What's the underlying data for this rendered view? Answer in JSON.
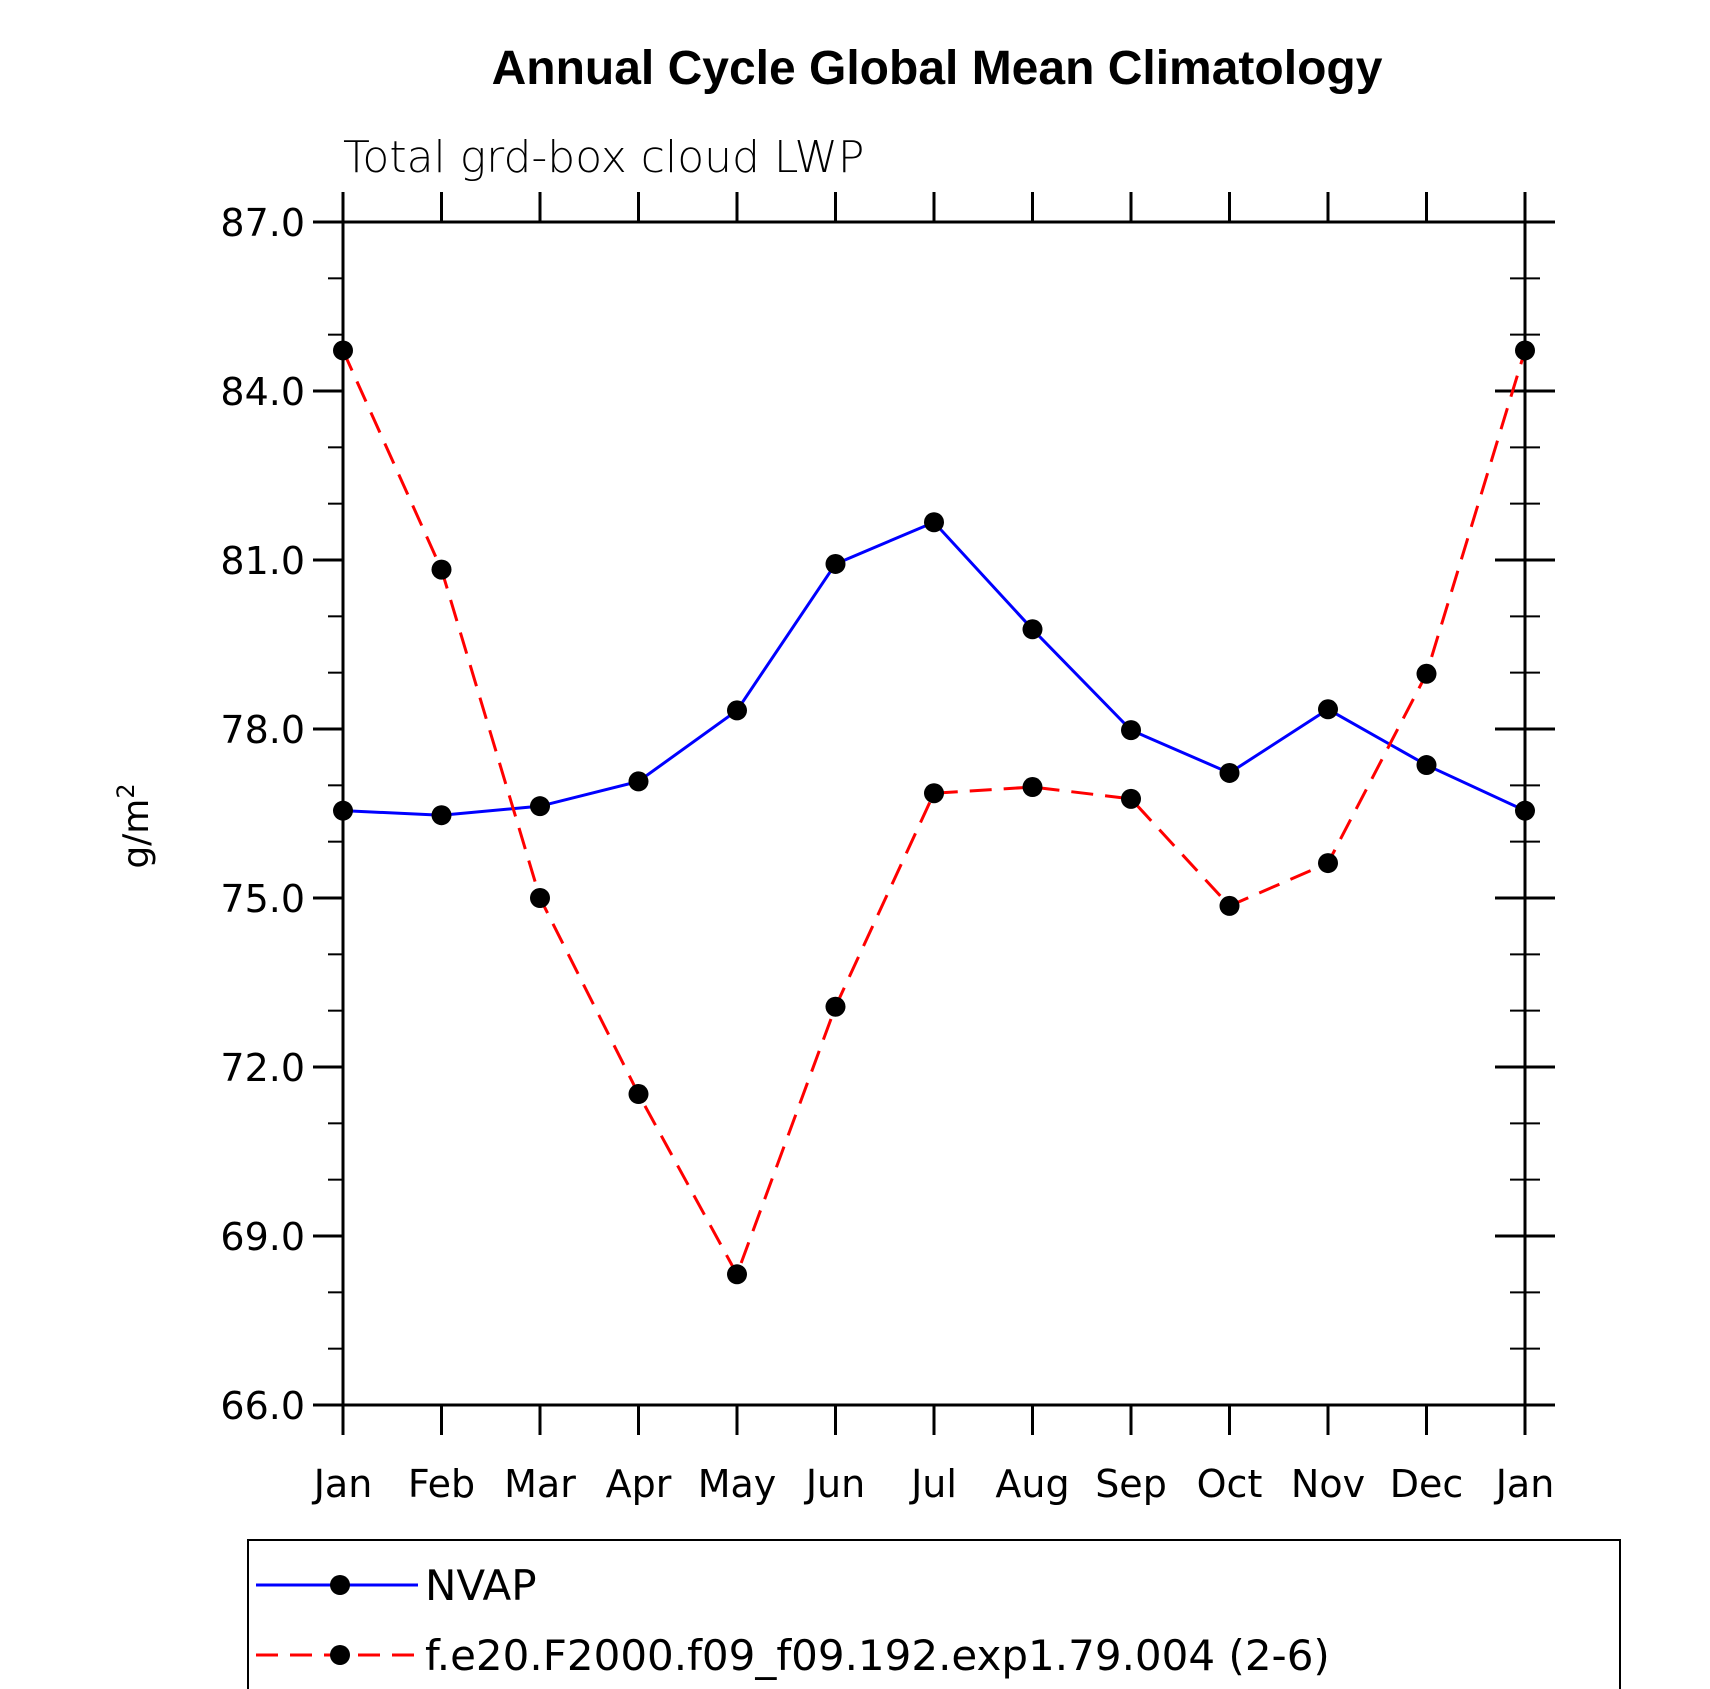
{
  "chart_data": {
    "type": "line",
    "title": "Annual Cycle Global Mean Climatology",
    "subtitle": "Total grd-box cloud LWP",
    "xlabel": "",
    "ylabel": "g/m",
    "ylabel_superscript": "2",
    "categories": [
      "Jan",
      "Feb",
      "Mar",
      "Apr",
      "May",
      "Jun",
      "Jul",
      "Aug",
      "Sep",
      "Oct",
      "Nov",
      "Dec",
      "Jan"
    ],
    "ylim": [
      66.0,
      87.0
    ],
    "yticks": [
      "66.0",
      "69.0",
      "72.0",
      "75.0",
      "78.0",
      "81.0",
      "84.0",
      "87.0"
    ],
    "series": [
      {
        "name": "NVAP",
        "color": "#0000ff",
        "dash": "solid",
        "values": [
          76.55,
          76.47,
          76.63,
          77.07,
          78.33,
          80.93,
          81.67,
          79.77,
          77.98,
          77.22,
          78.35,
          77.36,
          76.55
        ]
      },
      {
        "name": "f.e20.F2000.f09_f09.192.exp1.79.004 (2-6)",
        "color": "#ff0000",
        "dash": "dashed",
        "values": [
          84.72,
          80.83,
          75.0,
          71.52,
          68.32,
          73.07,
          76.86,
          76.97,
          76.76,
          74.86,
          75.62,
          78.98,
          84.72
        ]
      }
    ],
    "legend_position": "bottom"
  }
}
